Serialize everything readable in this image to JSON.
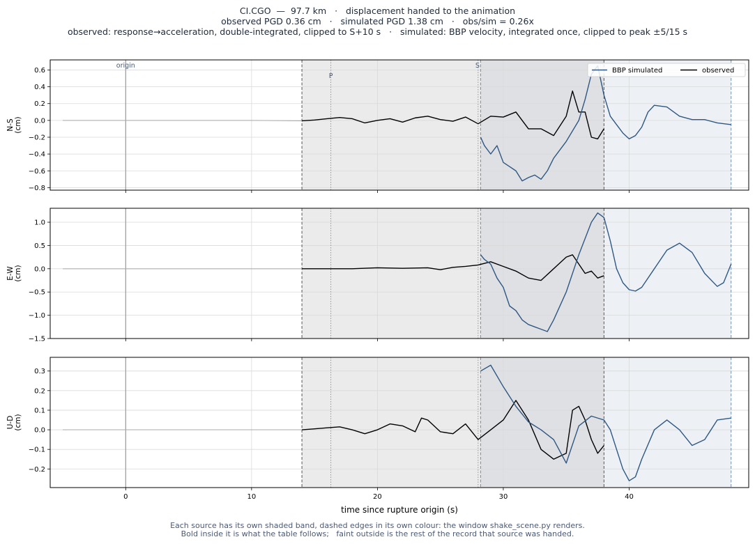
{
  "header": {
    "line1": "CI.CGO  —  97.7 km   ·   displacement handed to the animation",
    "line2": "observed PGD 0.36 cm   ·   simulated PGD 1.38 cm   ·   obs/sim = 0.26x",
    "line3": "observed: response→acceleration, double-integrated, clipped to S+10 s   ·   simulated: BBP velocity, integrated once, clipped to peak ±5/15 s"
  },
  "footer": {
    "line1": "Each source has its own shaded band, dashed edges in its own colour: the window shake_scene.py renders.",
    "line2": "Bold inside it is what the table follows;   faint outside is the rest of the record that source was handed."
  },
  "colors": {
    "observed": "#000000",
    "simulated": "#2e5783",
    "observed_band": "#ebebeb",
    "simulated_band": "#edf1f5",
    "overlap_band": "#dfe0e4",
    "observed_edge": "#555555",
    "simulated_edge": "#7390ab",
    "faint": "#a8a8a8"
  },
  "chart_data": {
    "type": "line",
    "xlabel": "time since rupture origin (s)",
    "xlim": [
      -6,
      49.5
    ],
    "xticks": [
      0,
      10,
      20,
      30,
      40
    ],
    "legend": {
      "entries": [
        "BBP simulated",
        "observed"
      ],
      "placement": "top-right"
    },
    "markers": [
      {
        "label": "origin",
        "t": 0
      },
      {
        "label": "P",
        "t": 16.3
      },
      {
        "label": "S",
        "t": 28.0
      }
    ],
    "observed_window": [
      14.0,
      38.0
    ],
    "simulated_window": [
      28.2,
      48.1
    ],
    "panels": [
      {
        "ylabel": "N-S\n(cm)",
        "ylim": [
          -0.83,
          0.72
        ],
        "yticks": [
          -0.8,
          -0.6,
          -0.4,
          -0.2,
          0.0,
          0.2,
          0.4,
          0.6
        ],
        "ytick_labels": [
          "−0.8",
          "−0.6",
          "−0.4",
          "−0.2",
          "0.0",
          "0.2",
          "0.4",
          "0.6"
        ],
        "observed": [
          [
            -5,
            0
          ],
          [
            0,
            0
          ],
          [
            5,
            0
          ],
          [
            10,
            0
          ],
          [
            14,
            -0.005
          ],
          [
            15,
            0.005
          ],
          [
            16,
            0.02
          ],
          [
            17,
            0.035
          ],
          [
            18,
            0.02
          ],
          [
            19,
            -0.03
          ],
          [
            20,
            0
          ],
          [
            21,
            0.02
          ],
          [
            22,
            -0.02
          ],
          [
            23,
            0.03
          ],
          [
            24,
            0.05
          ],
          [
            25,
            0.01
          ],
          [
            26,
            -0.01
          ],
          [
            27,
            0.04
          ],
          [
            28,
            -0.04
          ],
          [
            29,
            0.05
          ],
          [
            30,
            0.04
          ],
          [
            31,
            0.1
          ],
          [
            32,
            -0.1
          ],
          [
            33,
            -0.1
          ],
          [
            34,
            -0.18
          ],
          [
            35,
            0.05
          ],
          [
            35.5,
            0.35
          ],
          [
            36,
            0.1
          ],
          [
            36.5,
            0.1
          ],
          [
            37,
            -0.2
          ],
          [
            37.5,
            -0.22
          ],
          [
            38,
            -0.1
          ]
        ],
        "simulated": [
          [
            28.2,
            -0.2
          ],
          [
            28.5,
            -0.3
          ],
          [
            29,
            -0.4
          ],
          [
            29.5,
            -0.3
          ],
          [
            30,
            -0.5
          ],
          [
            30.5,
            -0.55
          ],
          [
            31,
            -0.6
          ],
          [
            31.5,
            -0.72
          ],
          [
            32,
            -0.68
          ],
          [
            32.5,
            -0.65
          ],
          [
            33,
            -0.7
          ],
          [
            33.5,
            -0.6
          ],
          [
            34,
            -0.45
          ],
          [
            35,
            -0.25
          ],
          [
            36,
            0.0
          ],
          [
            36.5,
            0.25
          ],
          [
            37,
            0.55
          ],
          [
            37.5,
            0.65
          ],
          [
            38,
            0.3
          ],
          [
            38.5,
            0.05
          ],
          [
            39,
            -0.05
          ],
          [
            39.5,
            -0.15
          ],
          [
            40,
            -0.22
          ],
          [
            40.5,
            -0.18
          ],
          [
            41,
            -0.08
          ],
          [
            41.5,
            0.1
          ],
          [
            42,
            0.18
          ],
          [
            43,
            0.16
          ],
          [
            44,
            0.05
          ],
          [
            45,
            0.01
          ],
          [
            46,
            0.01
          ],
          [
            47,
            -0.03
          ],
          [
            48.1,
            -0.05
          ]
        ]
      },
      {
        "ylabel": "E-W\n(cm)",
        "ylim": [
          -1.5,
          1.3
        ],
        "yticks": [
          -1.5,
          -1.0,
          -0.5,
          0.0,
          0.5,
          1.0
        ],
        "ytick_labels": [
          "−1.5",
          "−1.0",
          "−0.5",
          "0.0",
          "0.5",
          "1.0"
        ],
        "observed": [
          [
            -5,
            0
          ],
          [
            0,
            0
          ],
          [
            5,
            0
          ],
          [
            10,
            0
          ],
          [
            14,
            0
          ],
          [
            16,
            0
          ],
          [
            18,
            0
          ],
          [
            20,
            0.02
          ],
          [
            22,
            0.01
          ],
          [
            24,
            0.02
          ],
          [
            25,
            -0.02
          ],
          [
            26,
            0.03
          ],
          [
            27,
            0.05
          ],
          [
            28,
            0.08
          ],
          [
            29,
            0.15
          ],
          [
            30,
            0.05
          ],
          [
            31,
            -0.05
          ],
          [
            32,
            -0.2
          ],
          [
            33,
            -0.25
          ],
          [
            34,
            0
          ],
          [
            35,
            0.25
          ],
          [
            35.5,
            0.3
          ],
          [
            36,
            0.1
          ],
          [
            36.5,
            -0.1
          ],
          [
            37,
            -0.05
          ],
          [
            37.5,
            -0.2
          ],
          [
            38,
            -0.15
          ]
        ],
        "simulated": [
          [
            28.2,
            0.3
          ],
          [
            28.5,
            0.2
          ],
          [
            29,
            0.1
          ],
          [
            29.5,
            -0.2
          ],
          [
            30,
            -0.4
          ],
          [
            30.5,
            -0.8
          ],
          [
            31,
            -0.9
          ],
          [
            31.5,
            -1.1
          ],
          [
            32,
            -1.2
          ],
          [
            32.5,
            -1.25
          ],
          [
            33,
            -1.3
          ],
          [
            33.5,
            -1.35
          ],
          [
            34,
            -1.1
          ],
          [
            35,
            -0.5
          ],
          [
            36,
            0.3
          ],
          [
            37,
            1.0
          ],
          [
            37.5,
            1.2
          ],
          [
            38,
            1.1
          ],
          [
            38.5,
            0.6
          ],
          [
            39,
            0.0
          ],
          [
            39.5,
            -0.3
          ],
          [
            40,
            -0.45
          ],
          [
            40.5,
            -0.48
          ],
          [
            41,
            -0.4
          ],
          [
            42,
            0.0
          ],
          [
            43,
            0.4
          ],
          [
            44,
            0.55
          ],
          [
            45,
            0.35
          ],
          [
            46,
            -0.1
          ],
          [
            47,
            -0.38
          ],
          [
            47.5,
            -0.3
          ],
          [
            48.1,
            0.1
          ]
        ]
      },
      {
        "ylabel": "U-D\n(cm)",
        "ylim": [
          -0.295,
          0.37
        ],
        "yticks": [
          -0.2,
          -0.1,
          0.0,
          0.1,
          0.2,
          0.3
        ],
        "ytick_labels": [
          "−0.2",
          "−0.1",
          "0.0",
          "0.1",
          "0.2",
          "0.3"
        ],
        "observed": [
          [
            -5,
            0
          ],
          [
            0,
            0
          ],
          [
            5,
            0
          ],
          [
            10,
            0
          ],
          [
            14,
            0
          ],
          [
            15,
            0.005
          ],
          [
            16,
            0.01
          ],
          [
            17,
            0.015
          ],
          [
            18,
            0
          ],
          [
            19,
            -0.02
          ],
          [
            20,
            0
          ],
          [
            21,
            0.03
          ],
          [
            22,
            0.02
          ],
          [
            23,
            -0.01
          ],
          [
            23.5,
            0.06
          ],
          [
            24,
            0.05
          ],
          [
            25,
            -0.01
          ],
          [
            26,
            -0.02
          ],
          [
            27,
            0.03
          ],
          [
            28,
            -0.05
          ],
          [
            29,
            0.0
          ],
          [
            30,
            0.05
          ],
          [
            31,
            0.15
          ],
          [
            32,
            0.05
          ],
          [
            33,
            -0.1
          ],
          [
            34,
            -0.15
          ],
          [
            35,
            -0.12
          ],
          [
            35.5,
            0.1
          ],
          [
            36,
            0.12
          ],
          [
            36.5,
            0.05
          ],
          [
            37,
            -0.05
          ],
          [
            37.5,
            -0.12
          ],
          [
            38,
            -0.08
          ]
        ],
        "simulated": [
          [
            28.2,
            0.3
          ],
          [
            29,
            0.33
          ],
          [
            30,
            0.22
          ],
          [
            31,
            0.12
          ],
          [
            32,
            0.04
          ],
          [
            33,
            0.0
          ],
          [
            34,
            -0.05
          ],
          [
            35,
            -0.17
          ],
          [
            36,
            0.02
          ],
          [
            37,
            0.07
          ],
          [
            38,
            0.05
          ],
          [
            38.5,
            0.0
          ],
          [
            39,
            -0.1
          ],
          [
            39.5,
            -0.2
          ],
          [
            40,
            -0.26
          ],
          [
            40.5,
            -0.24
          ],
          [
            41,
            -0.15
          ],
          [
            42,
            0.0
          ],
          [
            43,
            0.05
          ],
          [
            44,
            0.0
          ],
          [
            45,
            -0.08
          ],
          [
            46,
            -0.05
          ],
          [
            47,
            0.05
          ],
          [
            48.1,
            0.06
          ]
        ]
      }
    ]
  }
}
